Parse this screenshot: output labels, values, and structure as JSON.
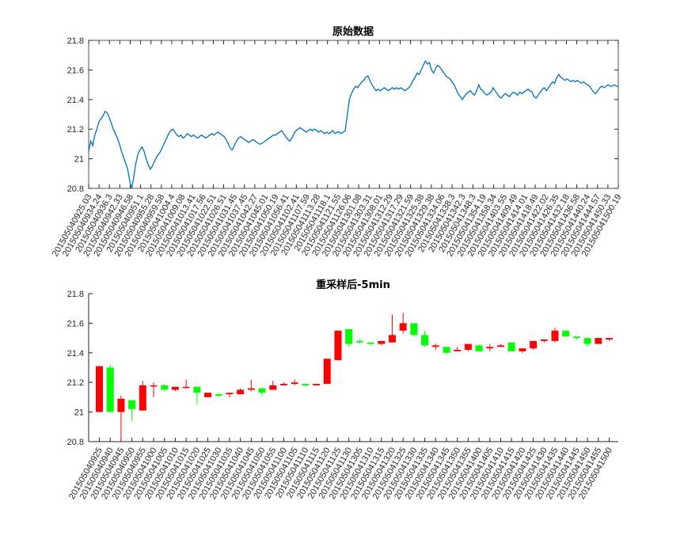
{
  "chart_data": [
    {
      "type": "line",
      "title": "原始数据",
      "xlabel": "",
      "ylabel": "",
      "ylim": [
        20.8,
        21.8
      ],
      "yticks": [
        "20.8",
        "21",
        "21.2",
        "21.4",
        "21.6",
        "21.8"
      ],
      "grid": false,
      "line_color": "#0072BD",
      "x_tick_labels": [
        "201505040925.03",
        "201505040934.24",
        "201505040936.3",
        "201505040942.33",
        "201505040946.58",
        "201505040951.1",
        "201505040955.28",
        "201505040959.58",
        "201505041004.4",
        "201505041009.08",
        "201505041013.41",
        "201505041017.56",
        "201505041022.51",
        "201505041026.51",
        "201505041031.45",
        "201505041037.45",
        "201505041042.27",
        "201505041045.01",
        "201505041050.19",
        "201505041056.41",
        "201505041102.41",
        "201505041107.59",
        "201505041113.28",
        "201505041118.1",
        "201505041121.55",
        "201505041126.06",
        "201505041301.08",
        "201505041303.31",
        "201505041308.01",
        "201505041312.29",
        "201505041317.29",
        "201505041321.59",
        "201505041325.38",
        "201505041329.38",
        "201505041334.06",
        "201505041338.3",
        "201505041342.3",
        "201505041348.3",
        "201505041354.19",
        "201505041358.34",
        "201505041403.55",
        "201505041409.49",
        "201505041414.01",
        "201505041418.49",
        "201505041422.02",
        "201505041426.35",
        "201505041432.18",
        "201505041436.58",
        "201505041440.24",
        "201505041444.57",
        "201505041450.33",
        "201505041500.19"
      ],
      "series": [
        {
          "values": [
            21.05,
            21.12,
            21.09,
            21.16,
            21.2,
            21.25,
            21.27,
            21.29,
            21.32,
            21.31,
            21.28,
            21.24,
            21.2,
            21.17,
            21.14,
            21.1,
            21.05,
            21.01,
            20.97,
            20.93,
            20.85,
            20.8,
            20.88,
            20.97,
            21.03,
            21.06,
            21.08,
            21.05,
            21.0,
            20.96,
            20.93,
            20.95,
            20.98,
            21.01,
            21.03,
            21.05,
            21.08,
            21.11,
            21.14,
            21.17,
            21.19,
            21.2,
            21.18,
            21.16,
            21.15,
            21.16,
            21.14,
            21.15,
            21.17,
            21.16,
            21.15,
            21.16,
            21.15,
            21.14,
            21.15,
            21.16,
            21.15,
            21.14,
            21.15,
            21.16,
            21.17,
            21.16,
            21.17,
            21.18,
            21.17,
            21.16,
            21.15,
            21.13,
            21.1,
            21.07,
            21.06,
            21.09,
            21.12,
            21.14,
            21.15,
            21.14,
            21.13,
            21.12,
            21.11,
            21.12,
            21.13,
            21.12,
            21.11,
            21.1,
            21.1,
            21.11,
            21.12,
            21.13,
            21.14,
            21.15,
            21.16,
            21.16,
            21.17,
            21.18,
            21.19,
            21.17,
            21.15,
            21.13,
            21.12,
            21.14,
            21.17,
            21.19,
            21.2,
            21.21,
            21.2,
            21.19,
            21.18,
            21.19,
            21.2,
            21.19,
            21.2,
            21.19,
            21.18,
            21.19,
            21.18,
            21.17,
            21.18,
            21.17,
            21.18,
            21.19,
            21.17,
            21.18,
            21.18,
            21.17,
            21.18,
            21.19,
            21.3,
            21.4,
            21.44,
            21.47,
            21.49,
            21.48,
            21.5,
            21.52,
            21.53,
            21.55,
            21.56,
            21.53,
            21.5,
            21.48,
            21.46,
            21.47,
            21.46,
            21.47,
            21.48,
            21.47,
            21.46,
            21.47,
            21.48,
            21.47,
            21.48,
            21.47,
            21.48,
            21.47,
            21.46,
            21.47,
            21.48,
            21.5,
            21.53,
            21.55,
            21.58,
            21.57,
            21.6,
            21.63,
            21.66,
            21.64,
            21.65,
            21.6,
            21.58,
            21.61,
            21.63,
            21.62,
            21.6,
            21.58,
            21.56,
            21.55,
            21.54,
            21.52,
            21.5,
            21.47,
            21.44,
            21.42,
            21.4,
            21.42,
            21.44,
            21.45,
            21.46,
            21.44,
            21.43,
            21.46,
            21.5,
            21.47,
            21.46,
            21.44,
            21.43,
            21.44,
            21.45,
            21.48,
            21.46,
            21.44,
            21.42,
            21.41,
            21.43,
            21.44,
            21.43,
            21.42,
            21.44,
            21.45,
            21.44,
            21.43,
            21.45,
            21.44,
            21.45,
            21.46,
            21.47,
            21.46,
            21.45,
            21.42,
            21.41,
            21.43,
            21.45,
            21.47,
            21.48,
            21.46,
            21.48,
            21.5,
            21.52,
            21.51,
            21.55,
            21.57,
            21.55,
            21.54,
            21.53,
            21.54,
            21.53,
            21.52,
            21.53,
            21.52,
            21.53,
            21.52,
            21.51,
            21.52,
            21.51,
            21.5,
            21.49,
            21.47,
            21.45,
            21.44,
            21.46,
            21.48,
            21.49,
            21.48,
            21.49,
            21.5,
            21.49,
            21.49,
            21.5,
            21.49,
            21.49
          ]
        }
      ]
    },
    {
      "type": "candlestick",
      "title": "重采样后-5min",
      "xlabel": "",
      "ylabel": "",
      "ylim": [
        20.8,
        21.8
      ],
      "yticks": [
        "20.8",
        "21",
        "21.2",
        "21.4",
        "21.6",
        "21.8"
      ],
      "grid": false,
      "colors": {
        "up": "#FF0000",
        "down": "#00FF00"
      },
      "categories": [
        "201505040925",
        "201505040940",
        "201505040945",
        "201505040950",
        "201505040955",
        "201505041000",
        "201505041005",
        "201505041010",
        "201505041015",
        "201505041020",
        "201505041025",
        "201505041030",
        "201505041035",
        "201505041040",
        "201505041045",
        "201505041050",
        "201505041055",
        "201505041100",
        "201505041105",
        "201505041110",
        "201505041115",
        "201505041120",
        "201505041125",
        "201505041130",
        "201505041305",
        "201505041310",
        "201505041315",
        "201505041320",
        "201505041325",
        "201505041330",
        "201505041335",
        "201505041340",
        "201505041345",
        "201505041350",
        "201505041355",
        "201505041400",
        "201505041405",
        "201505041410",
        "201505041415",
        "201505041420",
        "201505041425",
        "201505041430",
        "201505041435",
        "201505041440",
        "201505041445",
        "201505041450",
        "201505041455",
        "201505041500"
      ],
      "candles": [
        {
          "open": 21.0,
          "high": 21.31,
          "low": 21.0,
          "close": 21.31
        },
        {
          "open": 21.3,
          "high": 21.32,
          "low": 21.0,
          "close": 21.0
        },
        {
          "open": 21.0,
          "high": 21.11,
          "low": 20.8,
          "close": 21.09
        },
        {
          "open": 21.08,
          "high": 21.08,
          "low": 20.94,
          "close": 21.02
        },
        {
          "open": 21.01,
          "high": 21.21,
          "low": 21.01,
          "close": 21.18
        },
        {
          "open": 21.18,
          "high": 21.2,
          "low": 21.1,
          "close": 21.18
        },
        {
          "open": 21.18,
          "high": 21.19,
          "low": 21.14,
          "close": 21.15
        },
        {
          "open": 21.15,
          "high": 21.17,
          "low": 21.14,
          "close": 21.17
        },
        {
          "open": 21.17,
          "high": 21.22,
          "low": 21.16,
          "close": 21.17
        },
        {
          "open": 21.17,
          "high": 21.17,
          "low": 21.05,
          "close": 21.13
        },
        {
          "open": 21.1,
          "high": 21.13,
          "low": 21.1,
          "close": 21.13
        },
        {
          "open": 21.12,
          "high": 21.13,
          "low": 21.1,
          "close": 21.11
        },
        {
          "open": 21.12,
          "high": 21.13,
          "low": 21.1,
          "close": 21.13
        },
        {
          "open": 21.12,
          "high": 21.16,
          "low": 21.12,
          "close": 21.15
        },
        {
          "open": 21.15,
          "high": 21.22,
          "low": 21.14,
          "close": 21.16
        },
        {
          "open": 21.16,
          "high": 21.16,
          "low": 21.11,
          "close": 21.13
        },
        {
          "open": 21.15,
          "high": 21.21,
          "low": 21.15,
          "close": 21.18
        },
        {
          "open": 21.18,
          "high": 21.2,
          "low": 21.18,
          "close": 21.19
        },
        {
          "open": 21.19,
          "high": 21.22,
          "low": 21.18,
          "close": 21.2
        },
        {
          "open": 21.19,
          "high": 21.19,
          "low": 21.17,
          "close": 21.18
        },
        {
          "open": 21.18,
          "high": 21.19,
          "low": 21.18,
          "close": 21.19
        },
        {
          "open": 21.19,
          "high": 21.36,
          "low": 21.19,
          "close": 21.36
        },
        {
          "open": 21.35,
          "high": 21.55,
          "low": 21.35,
          "close": 21.55
        },
        {
          "open": 21.56,
          "high": 21.56,
          "low": 21.44,
          "close": 21.46
        },
        {
          "open": 21.48,
          "high": 21.49,
          "low": 21.46,
          "close": 21.47
        },
        {
          "open": 21.47,
          "high": 21.47,
          "low": 21.45,
          "close": 21.46
        },
        {
          "open": 21.46,
          "high": 21.48,
          "low": 21.45,
          "close": 21.48
        },
        {
          "open": 21.47,
          "high": 21.66,
          "low": 21.47,
          "close": 21.52
        },
        {
          "open": 21.55,
          "high": 21.67,
          "low": 21.53,
          "close": 21.6
        },
        {
          "open": 21.6,
          "high": 21.6,
          "low": 21.51,
          "close": 21.52
        },
        {
          "open": 21.52,
          "high": 21.55,
          "low": 21.44,
          "close": 21.45
        },
        {
          "open": 21.44,
          "high": 21.46,
          "low": 21.42,
          "close": 21.45
        },
        {
          "open": 21.44,
          "high": 21.44,
          "low": 21.39,
          "close": 21.4
        },
        {
          "open": 21.41,
          "high": 21.44,
          "low": 21.41,
          "close": 21.42
        },
        {
          "open": 21.42,
          "high": 21.46,
          "low": 21.41,
          "close": 21.46
        },
        {
          "open": 21.45,
          "high": 21.46,
          "low": 21.41,
          "close": 21.41
        },
        {
          "open": 21.43,
          "high": 21.46,
          "low": 21.41,
          "close": 21.44
        },
        {
          "open": 21.44,
          "high": 21.46,
          "low": 21.44,
          "close": 21.45
        },
        {
          "open": 21.47,
          "high": 21.47,
          "low": 21.41,
          "close": 21.41
        },
        {
          "open": 21.41,
          "high": 21.43,
          "low": 21.4,
          "close": 21.43
        },
        {
          "open": 21.43,
          "high": 21.48,
          "low": 21.42,
          "close": 21.48
        },
        {
          "open": 21.48,
          "high": 21.49,
          "low": 21.47,
          "close": 21.49
        },
        {
          "open": 21.48,
          "high": 21.57,
          "low": 21.47,
          "close": 21.55
        },
        {
          "open": 21.55,
          "high": 21.55,
          "low": 21.51,
          "close": 21.51
        },
        {
          "open": 21.51,
          "high": 21.51,
          "low": 21.49,
          "close": 21.5
        },
        {
          "open": 21.5,
          "high": 21.5,
          "low": 21.44,
          "close": 21.46
        },
        {
          "open": 21.46,
          "high": 21.5,
          "low": 21.46,
          "close": 21.5
        },
        {
          "open": 21.49,
          "high": 21.5,
          "low": 21.48,
          "close": 21.5
        }
      ]
    }
  ]
}
